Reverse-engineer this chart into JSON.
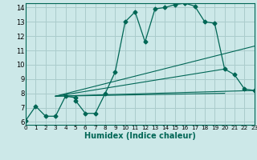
{
  "xlabel": "Humidex (Indice chaleur)",
  "background_color": "#cce8e8",
  "grid_color": "#aacccc",
  "line_color": "#006655",
  "xlim": [
    0,
    23
  ],
  "ylim": [
    6,
    14
  ],
  "xticks": [
    0,
    1,
    2,
    3,
    4,
    5,
    6,
    7,
    8,
    9,
    10,
    11,
    12,
    13,
    14,
    15,
    16,
    17,
    18,
    19,
    20,
    21,
    22,
    23
  ],
  "yticks": [
    6,
    7,
    8,
    9,
    10,
    11,
    12,
    13,
    14
  ],
  "main_series": {
    "x": [
      0,
      1,
      2,
      3,
      4,
      5,
      5,
      6,
      7,
      8,
      9,
      10,
      11,
      12,
      13,
      14,
      15,
      16,
      17,
      18,
      19,
      20,
      21,
      22,
      23
    ],
    "y": [
      6.1,
      7.1,
      6.4,
      6.4,
      7.8,
      7.7,
      7.5,
      6.6,
      6.6,
      8.0,
      9.5,
      13.0,
      13.7,
      11.6,
      13.9,
      14.0,
      14.2,
      14.3,
      14.1,
      13.0,
      12.9,
      9.7,
      9.3,
      8.3,
      8.2
    ]
  },
  "straight_lines": [
    {
      "x": [
        3,
        23
      ],
      "y": [
        7.8,
        11.3
      ]
    },
    {
      "x": [
        3,
        20
      ],
      "y": [
        7.8,
        9.7
      ]
    },
    {
      "x": [
        3,
        23
      ],
      "y": [
        7.8,
        8.2
      ]
    },
    {
      "x": [
        3,
        20
      ],
      "y": [
        7.8,
        8.0
      ]
    }
  ]
}
